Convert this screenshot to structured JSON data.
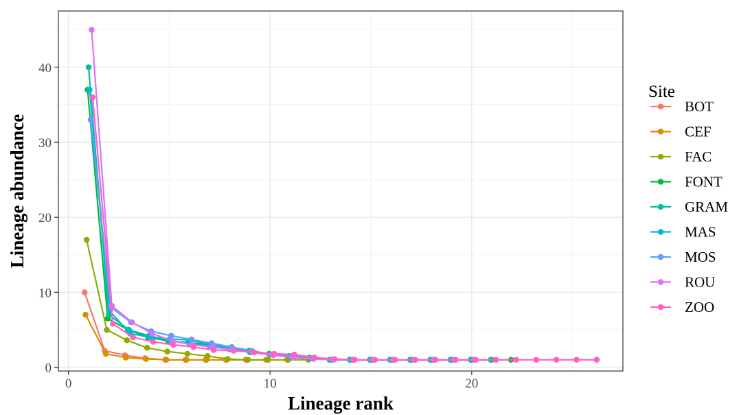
{
  "chart_data": {
    "type": "line",
    "title": "",
    "xlabel": "Lineage rank",
    "ylabel": "Lineage abundance",
    "xlim": [
      -0.5,
      27.5
    ],
    "ylim": [
      -0.5,
      47.5
    ],
    "x_ticks": [
      0,
      10,
      20
    ],
    "y_ticks": [
      0,
      10,
      20,
      30,
      40
    ],
    "grid": true,
    "legend": {
      "title": "Site",
      "position": "right"
    },
    "series": [
      {
        "name": "BOT",
        "color": "#F8766D",
        "x": [
          1,
          2,
          3,
          4,
          5,
          6,
          7,
          8,
          9,
          10
        ],
        "y": [
          10,
          2.2,
          1.6,
          1.2,
          1,
          1,
          1,
          1,
          1,
          1
        ]
      },
      {
        "name": "CEF",
        "color": "#D39200",
        "x": [
          1,
          2,
          3,
          4,
          5,
          6,
          7,
          8,
          9,
          10,
          11
        ],
        "y": [
          7,
          1.8,
          1.3,
          1.1,
          1,
          1,
          1,
          1,
          1,
          1,
          1
        ]
      },
      {
        "name": "FAC",
        "color": "#93AA00",
        "x": [
          1,
          2,
          3,
          4,
          5,
          6,
          7,
          8,
          9,
          10,
          11,
          12
        ],
        "y": [
          17,
          5,
          3.6,
          2.6,
          2.1,
          1.8,
          1.5,
          1.1,
          1,
          1,
          1,
          1
        ]
      },
      {
        "name": "FONT",
        "color": "#00BA38",
        "x": [
          1,
          2,
          3,
          4,
          5,
          6,
          7,
          8,
          9,
          10,
          11,
          12,
          13,
          14,
          15,
          16,
          17,
          18,
          19,
          20,
          21,
          22
        ],
        "y": [
          37,
          6.5,
          5,
          4,
          3.5,
          3.3,
          3,
          2.5,
          2.2,
          1.8,
          1.5,
          1.3,
          1,
          1,
          1,
          1,
          1,
          1,
          1,
          1,
          1,
          1
        ]
      },
      {
        "name": "GRAM",
        "color": "#00C19F",
        "x": [
          1,
          2,
          3,
          4,
          5,
          6,
          7,
          8,
          9,
          10,
          11,
          12,
          13,
          14,
          15,
          16,
          17,
          18,
          19,
          20,
          21
        ],
        "y": [
          40,
          7,
          5,
          4.2,
          3.6,
          3.2,
          2.8,
          2.4,
          2,
          1.7,
          1.5,
          1.2,
          1,
          1,
          1,
          1,
          1,
          1,
          1,
          1,
          1
        ]
      },
      {
        "name": "MAS",
        "color": "#00B9E3",
        "x": [
          1,
          2,
          3,
          4,
          5,
          6,
          7,
          8,
          9,
          10,
          11,
          12,
          13,
          14,
          15,
          16,
          17,
          18,
          19,
          20
        ],
        "y": [
          37,
          7.5,
          4.5,
          4,
          3.8,
          3.6,
          3,
          2.6,
          2.1,
          1.7,
          1.4,
          1.2,
          1,
          1,
          1,
          1,
          1,
          1,
          1,
          1
        ]
      },
      {
        "name": "MOS",
        "color": "#619CFF",
        "x": [
          1,
          2,
          3,
          4,
          5,
          6,
          7,
          8,
          9,
          10,
          11,
          12,
          13,
          14,
          15,
          16,
          17,
          18,
          19
        ],
        "y": [
          33,
          8,
          6,
          4.8,
          4.2,
          3.7,
          3.2,
          2.7,
          2.2,
          1.7,
          1.4,
          1.2,
          1,
          1,
          1,
          1,
          1,
          1,
          1
        ]
      },
      {
        "name": "ROU",
        "color": "#DB72FB",
        "x": [
          1,
          2,
          3,
          4,
          5,
          6,
          7,
          8,
          9,
          10,
          11,
          12,
          13,
          14,
          15,
          16,
          17,
          18,
          19,
          20
        ],
        "y": [
          45,
          8.2,
          6,
          4.5,
          3.5,
          3,
          2.7,
          2.3,
          2,
          1.6,
          1.3,
          1.1,
          1,
          1,
          1,
          1,
          1,
          1,
          1,
          1
        ]
      },
      {
        "name": "ZOO",
        "color": "#FF61C3",
        "x": [
          1,
          2,
          3,
          4,
          5,
          6,
          7,
          8,
          9,
          10,
          11,
          12,
          13,
          14,
          15,
          16,
          17,
          18,
          19,
          20,
          21,
          22,
          23,
          24,
          25,
          26
        ],
        "y": [
          36,
          5.8,
          4,
          3.4,
          3,
          2.7,
          2.3,
          2.2,
          2,
          1.8,
          1.7,
          1.3,
          1.1,
          1,
          1,
          1,
          1,
          1,
          1,
          1,
          1,
          1,
          1,
          1,
          1,
          1
        ]
      }
    ]
  }
}
